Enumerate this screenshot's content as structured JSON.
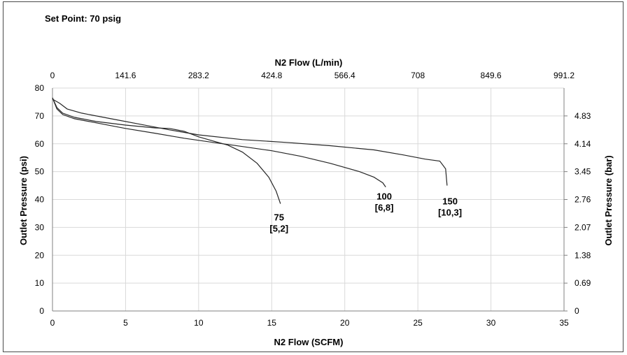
{
  "chart_data": {
    "type": "line",
    "set_point": "Set Point: 70 psig",
    "xlabel": "N2 Flow (SCFM)",
    "x2label": "N2 Flow (L/min)",
    "ylabel": "Outlet Pressure (psi)",
    "y2label": "Outlet Pressure (bar)",
    "xlim": [
      0,
      35
    ],
    "ylim": [
      0,
      80
    ],
    "grid": true,
    "x_ticks": [
      "0",
      "5",
      "10",
      "15",
      "20",
      "25",
      "30",
      "35"
    ],
    "x2_ticks": [
      "0",
      "141.6",
      "283.2",
      "424.8",
      "566.4",
      "708",
      "849.6",
      "991.2"
    ],
    "y_ticks": [
      "0",
      "10",
      "20",
      "30",
      "40",
      "50",
      "60",
      "70",
      "80"
    ],
    "y2_ticks": [
      "0",
      "0.69",
      "1.38",
      "2.07",
      "2.76",
      "3.45",
      "4.14",
      "4.83"
    ],
    "series": [
      {
        "label_line1": "75",
        "label_line2": "[5,2]",
        "points": [
          [
            0,
            76.5
          ],
          [
            0.3,
            73
          ],
          [
            0.7,
            71
          ],
          [
            1.5,
            69.5
          ],
          [
            3,
            68
          ],
          [
            5,
            66.7
          ],
          [
            7,
            65.7
          ],
          [
            8,
            65.5
          ],
          [
            9,
            64.5
          ],
          [
            10,
            62.5
          ],
          [
            11,
            61
          ],
          [
            12,
            59.5
          ],
          [
            13,
            57
          ],
          [
            14,
            53
          ],
          [
            14.8,
            48
          ],
          [
            15.3,
            43
          ],
          [
            15.6,
            38.5
          ]
        ]
      },
      {
        "label_line1": "100",
        "label_line2": "[6,8]",
        "points": [
          [
            0,
            76.5
          ],
          [
            0.3,
            72.5
          ],
          [
            0.7,
            70.5
          ],
          [
            1.5,
            69
          ],
          [
            3,
            67.5
          ],
          [
            5,
            65.5
          ],
          [
            7,
            63.8
          ],
          [
            9,
            62
          ],
          [
            11,
            60.5
          ],
          [
            13,
            59
          ],
          [
            15,
            57.5
          ],
          [
            17,
            55.5
          ],
          [
            19,
            53
          ],
          [
            21,
            50
          ],
          [
            22,
            48
          ],
          [
            22.6,
            46
          ],
          [
            22.8,
            44.5
          ]
        ]
      },
      {
        "label_line1": "150",
        "label_line2": "[10,3]",
        "points": [
          [
            0,
            76
          ],
          [
            0.5,
            74.5
          ],
          [
            1,
            72.5
          ],
          [
            2,
            71
          ],
          [
            4,
            69
          ],
          [
            6,
            67
          ],
          [
            8,
            65
          ],
          [
            10,
            63.2
          ],
          [
            13,
            61.5
          ],
          [
            16,
            60.5
          ],
          [
            19,
            59.3
          ],
          [
            22,
            57.8
          ],
          [
            24,
            56
          ],
          [
            25.5,
            54.5
          ],
          [
            26.5,
            53.8
          ],
          [
            26.9,
            51
          ],
          [
            27,
            45
          ]
        ]
      }
    ],
    "label_positions_data": [
      [
        15.5,
        32.5
      ],
      [
        22.7,
        40
      ],
      [
        27.2,
        38.3
      ]
    ]
  }
}
